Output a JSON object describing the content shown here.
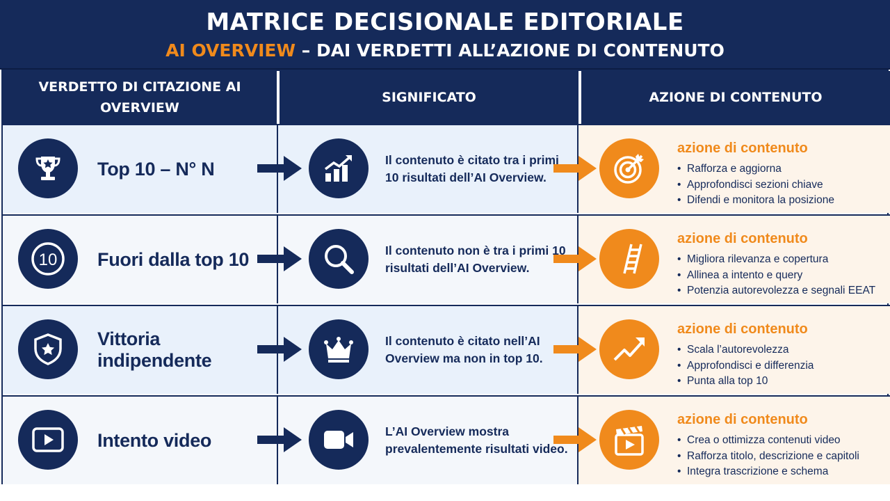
{
  "header": {
    "title": "MATRICE DECISIONALE EDITORIALE",
    "subtitle_accent": "AI OVERVIEW",
    "subtitle_rest": " – DAI VERDETTI ALL’AZIONE DI CONTENUTO"
  },
  "columns": {
    "verdict": "VERDETTO DI CITAZIONE AI OVERVIEW",
    "meaning": "SIGNIFICATO",
    "action": "AZIONE DI CONTENUTO"
  },
  "colors": {
    "navy": "#152a5a",
    "orange": "#f08a1c",
    "row_blue": "#e9f1fb",
    "row_orange": "#fdf4ea"
  },
  "rows": [
    {
      "verdict": "Top 10 – N° N",
      "verdict_icon": "trophy-icon",
      "meaning": "Il contenuto è citato tra i primi 10 risultati dell’AI Overview.",
      "meaning_icon": "growth-chart-icon",
      "action_title": "azione di contenuto",
      "action_icon": "target-icon",
      "actions": [
        "Rafforza e aggiorna",
        "Approfondisci sezioni chiave",
        "Difendi e monitora la posizione"
      ]
    },
    {
      "verdict": "Fuori dalla top 10",
      "verdict_icon": "number-ten-icon",
      "verdict_icon_text": "10",
      "meaning": "Il contenuto non è tra i primi 10 risultati dell’AI Overview.",
      "meaning_icon": "search-icon",
      "action_title": "azione di contenuto",
      "action_icon": "ladder-icon",
      "actions": [
        "Migliora rilevanza e copertura",
        "Allinea a intento e query",
        "Potenzia autorevolezza e segnali EEAT"
      ]
    },
    {
      "verdict": "Vittoria indipendente",
      "verdict_icon": "shield-star-icon",
      "meaning": "Il contenuto è citato nell’AI Overview ma non in top 10.",
      "meaning_icon": "crown-icon",
      "action_title": "azione di contenuto",
      "action_icon": "trend-up-icon",
      "actions": [
        "Scala l’autorevolezza",
        "Approfondisci e differenzia",
        "Punta alla top 10"
      ]
    },
    {
      "verdict": "Intento video",
      "verdict_icon": "video-play-icon",
      "meaning": "L’AI Overview mostra prevalentemente risultati video.",
      "meaning_icon": "video-camera-icon",
      "action_title": "azione di contenuto",
      "action_icon": "clapperboard-icon",
      "actions": [
        "Crea o ottimizza contenuti video",
        "Rafforza titolo, descrizione e capitoli",
        "Integra trascrizione e schema"
      ]
    }
  ]
}
